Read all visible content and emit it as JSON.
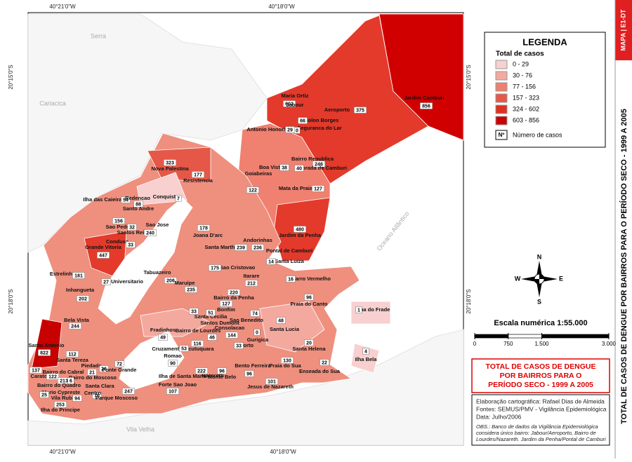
{
  "map_code": "MAPA | E1-DT",
  "side_title": "TOTAL DE CASOS DE DENGUE POR BAIRROS  PARA O PERÍODO SECO  - 1999 A 2005",
  "coordinates": {
    "top": [
      "40°21'0\"W",
      "40°18'0\"W"
    ],
    "bottom": [
      "40°21'0\"W",
      "40°18'0\"W"
    ],
    "left": [
      "20°15'0\"S",
      "20°18'0\"S"
    ],
    "right": [
      "20°15'0\"S",
      "20°18'0\"S"
    ]
  },
  "places": [
    "Serra",
    "Cariacica",
    "Vila Velha",
    "Oceano Atlântico"
  ],
  "legend": {
    "title": "LEGENDA",
    "subtitle": "Total de casos",
    "classes": [
      {
        "label": "0 - 29",
        "color": "#f8d0d0"
      },
      {
        "label": "30 - 76",
        "color": "#f4a99f"
      },
      {
        "label": "77 - 156",
        "color": "#ee8070"
      },
      {
        "label": "157 - 323",
        "color": "#e55848"
      },
      {
        "label": "324 - 602",
        "color": "#e03020"
      },
      {
        "label": "603 - 856",
        "color": "#cc0000"
      }
    ],
    "symbol": "Nº",
    "symbol_label": "Número de casos"
  },
  "compass": {
    "n": "N",
    "s": "S",
    "e": "E",
    "w": "W"
  },
  "scale": {
    "text": "Escala numérica   1:55.000",
    "ticks": [
      0,
      750,
      {
        "value": 1500,
        "label": "1.500"
      },
      {
        "value": 3000,
        "label": "3.000"
      }
    ]
  },
  "title_lines": [
    "TOTAL DE CASOS DE DENGUE",
    "POR BAIRROS PARA O",
    "PERÍODO SECO - 1999 A 2005"
  ],
  "credits": [
    "Elaboração cartográfica: Rafael Dias de Almeida",
    "Fontes: SEMUS/PMV - Vigilância Epidemiológica",
    "Data: Julho/2006"
  ],
  "obs": [
    "OBS.: Banco de dados da Vigilância Epidemiológica",
    "considera único bairro: Jabour/Aeroporto, Bairro de",
    "Lourdes/Nazareth. Jardim da Penha/Pontal de Camburi"
  ],
  "neighborhoods": [
    {
      "name": "Maria Ortiz",
      "cases": 602
    },
    {
      "name": "Jabour",
      "cases": null
    },
    {
      "name": "Aeroporto",
      "cases": 375
    },
    {
      "name": "Jardim Camburi",
      "cases": 856
    },
    {
      "name": "Solon Borges",
      "cases": 66
    },
    {
      "name": "Seguranca do Lar",
      "cases": 0
    },
    {
      "name": "Antonio Honorio",
      "cases": 29
    },
    {
      "name": "Bairro Republica",
      "cases": 246
    },
    {
      "name": "Boa Vista",
      "cases": 38
    },
    {
      "name": "Morada de Camburi",
      "cases": 40
    },
    {
      "name": "Goiabeiras",
      "cases": 122
    },
    {
      "name": "Mata da Praia",
      "cases": 127
    },
    {
      "name": "Jardim da Penha",
      "cases": 480
    },
    {
      "name": "Andorinhas",
      "cases": 236
    },
    {
      "name": "Santa Martha",
      "cases": 239
    },
    {
      "name": "Pontal de Camburi",
      "cases": null
    },
    {
      "name": "Santa Luiza",
      "cases": 14
    },
    {
      "name": "Joana D'arc",
      "cases": 178
    },
    {
      "name": "Nova Palestina",
      "cases": 323
    },
    {
      "name": "Resistencia",
      "cases": 177
    },
    {
      "name": "Conquista",
      "cases": 7
    },
    {
      "name": "Ilha das Caieiras",
      "cases": 54
    },
    {
      "name": "Redencao",
      "cases": 88
    },
    {
      "name": "Santo Andre",
      "cases": null
    },
    {
      "name": "Sao Pedro",
      "cases": 156
    },
    {
      "name": "Santos Reis",
      "cases": 32
    },
    {
      "name": "Sao Jose",
      "cases": 240
    },
    {
      "name": "Condusa",
      "cases": 33
    },
    {
      "name": "Grande Vitoria",
      "cases": 447
    },
    {
      "name": "Estrelinha",
      "cases": 181
    },
    {
      "name": "Universitario",
      "cases": 27
    },
    {
      "name": "Inhangueta",
      "cases": 202
    },
    {
      "name": "Tabuazeiro",
      "cases": 206
    },
    {
      "name": "Sao Cristovao",
      "cases": 175
    },
    {
      "name": "Maruipe",
      "cases": 235
    },
    {
      "name": "Itarare",
      "cases": 212
    },
    {
      "name": "Bairro da Penha",
      "cases": 220
    },
    {
      "name": "Bonfim",
      "cases": 127
    },
    {
      "name": "Santa Cecilia",
      "cases": 33
    },
    {
      "name": "Santos Dumont",
      "cases": 51
    },
    {
      "name": "Sao Benedito",
      "cases": 74
    },
    {
      "name": "Bela Vista",
      "cases": 244
    },
    {
      "name": "Fradinhos",
      "cases": 49
    },
    {
      "name": "Bairro de Lourdes",
      "cases": 46
    },
    {
      "name": "Consolacao",
      "cases": 144
    },
    {
      "name": "Gurigica",
      "cases": 0
    },
    {
      "name": "Santa Lucia",
      "cases": 48
    },
    {
      "name": "Barro Vermelho",
      "cases": 16
    },
    {
      "name": "Praia do Canto",
      "cases": 96
    },
    {
      "name": "Ilha do Frade",
      "cases": 1
    },
    {
      "name": "Santo Antonio",
      "cases": 822
    },
    {
      "name": "Santa Helena",
      "cases": 20
    },
    {
      "name": "Ilha Bela",
      "cases": 4
    },
    {
      "name": "Enseada do Sua",
      "cases": 22
    },
    {
      "name": "Praia do Sua",
      "cases": 130
    },
    {
      "name": "Bento Ferreira",
      "cases": 96
    },
    {
      "name": "Horto",
      "cases": 33
    },
    {
      "name": "Jucutuquara",
      "cases": 116
    },
    {
      "name": "Cruzamento",
      "cases": 53
    },
    {
      "name": "Romao",
      "cases": 90
    },
    {
      "name": "Nazareth",
      "cases": 222
    },
    {
      "name": "Monte Belo",
      "cases": 96
    },
    {
      "name": "Ilha de Santa Maria",
      "cases": null
    },
    {
      "name": "Jesus de Nazareth",
      "cases": 101
    },
    {
      "name": "Forte Sao Joao",
      "cases": 107
    },
    {
      "name": "Santa Tereza",
      "cases": 112
    },
    {
      "name": "Caratoira",
      "cases": 122
    },
    {
      "name": "Piedade",
      "cases": 26
    },
    {
      "name": "Fonte Grande",
      "cases": 72
    },
    {
      "name": "Bairro do Cabral",
      "cases": 213
    },
    {
      "name": "Bairro do Moscoso",
      "cases": 21
    },
    {
      "name": "Bairro do Quadro",
      "cases": 6
    },
    {
      "name": "Mario Cypreste",
      "cases": 25
    },
    {
      "name": "Vila Rubim",
      "cases": 94
    },
    {
      "name": "Ilha do Principe",
      "cases": 253
    },
    {
      "name": "Santa Clara",
      "cases": 76
    },
    {
      "name": "Centro",
      "cases": null
    },
    {
      "name": "Parque Moscoso",
      "cases": 247
    },
    {
      "name": null,
      "cases": 137
    }
  ]
}
